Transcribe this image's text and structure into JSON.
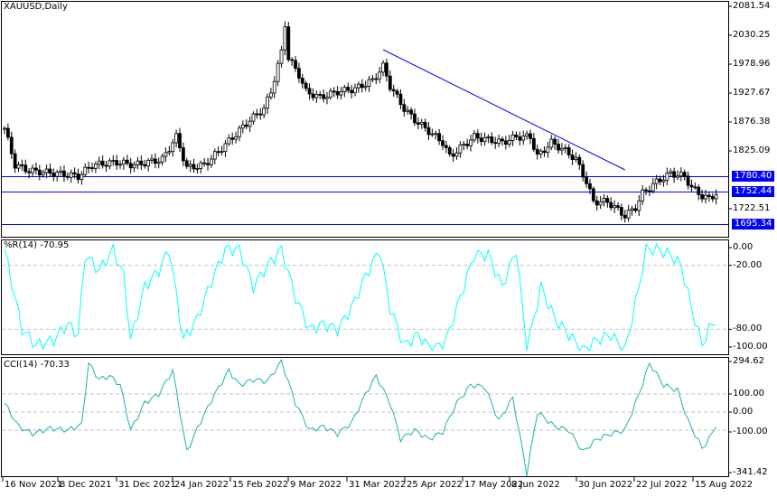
{
  "main_title": "XAUUSD,Daily",
  "price_axis": [
    "2081.54",
    "2030.25",
    "1978.96",
    "1927.67",
    "1876.38",
    "1825.09",
    "1722.51"
  ],
  "levels": [
    {
      "label": "1780.40",
      "value": 1780.4
    },
    {
      "label": "1752.44",
      "value": 1752.44
    },
    {
      "label": "1695.34",
      "value": 1695.34
    }
  ],
  "line_color": "#0000ff",
  "wpr": {
    "title": "%R(14) -70.95",
    "axis": [
      "0.00",
      "-20.00",
      "-80.00",
      "-100.00"
    ],
    "color": "#00ffff"
  },
  "cci": {
    "title": "CCI(14) -70.33",
    "axis": [
      "294.62",
      "100.00",
      "0.00",
      "-100.00",
      "-341.42"
    ],
    "color": "#20b2aa"
  },
  "dates": [
    "16 Nov 2021",
    "8 Dec 2021",
    "31 Dec 2021",
    "24 Jan 2022",
    "15 Feb 2022",
    "9 Mar 2022",
    "31 Mar 2022",
    "25 Apr 2022",
    "17 May 2022",
    "8 Jun 2022",
    "30 Jun 2022",
    "22 Jul 2022",
    "15 Aug 2022"
  ],
  "chart_data": {
    "type": "candlestick",
    "symbol": "XAUUSD",
    "timeframe": "Daily",
    "ylim": [
      1672,
      2089
    ],
    "close_keypoints": [
      [
        0,
        1865
      ],
      [
        3,
        1800
      ],
      [
        7,
        1790
      ],
      [
        15,
        1785
      ],
      [
        21,
        1780
      ],
      [
        25,
        1800
      ],
      [
        32,
        1805
      ],
      [
        37,
        1800
      ],
      [
        45,
        1810
      ],
      [
        49,
        1850
      ],
      [
        52,
        1795
      ],
      [
        57,
        1800
      ],
      [
        62,
        1830
      ],
      [
        66,
        1855
      ],
      [
        70,
        1880
      ],
      [
        74,
        1900
      ],
      [
        76,
        1930
      ],
      [
        79,
        2000
      ],
      [
        80,
        2050
      ],
      [
        81,
        1990
      ],
      [
        84,
        1960
      ],
      [
        86,
        1930
      ],
      [
        90,
        1920
      ],
      [
        95,
        1930
      ],
      [
        100,
        1935
      ],
      [
        105,
        1950
      ],
      [
        108,
        1975
      ],
      [
        110,
        1940
      ],
      [
        114,
        1900
      ],
      [
        117,
        1880
      ],
      [
        121,
        1860
      ],
      [
        125,
        1840
      ],
      [
        127,
        1815
      ],
      [
        130,
        1830
      ],
      [
        134,
        1850
      ],
      [
        138,
        1845
      ],
      [
        142,
        1840
      ],
      [
        146,
        1850
      ],
      [
        150,
        1850
      ],
      [
        152,
        1815
      ],
      [
        156,
        1840
      ],
      [
        160,
        1825
      ],
      [
        163,
        1810
      ],
      [
        166,
        1770
      ],
      [
        168,
        1735
      ],
      [
        172,
        1735
      ],
      [
        175,
        1720
      ],
      [
        177,
        1710
      ],
      [
        180,
        1725
      ],
      [
        182,
        1750
      ],
      [
        186,
        1770
      ],
      [
        190,
        1785
      ],
      [
        194,
        1780
      ],
      [
        196,
        1760
      ],
      [
        199,
        1745
      ],
      [
        201,
        1740
      ],
      [
        203,
        1750
      ]
    ],
    "trendline": [
      [
        108,
        2004.6
      ],
      [
        177,
        1791.4
      ]
    ],
    "wpr_keypoints": [
      [
        0,
        -5
      ],
      [
        5,
        -80
      ],
      [
        9,
        -95
      ],
      [
        14,
        -90
      ],
      [
        18,
        -75
      ],
      [
        21,
        -85
      ],
      [
        23,
        -10
      ],
      [
        27,
        -25
      ],
      [
        31,
        -5
      ],
      [
        34,
        -30
      ],
      [
        36,
        -90
      ],
      [
        40,
        -40
      ],
      [
        44,
        -25
      ],
      [
        47,
        -5
      ],
      [
        51,
        -90
      ],
      [
        55,
        -70
      ],
      [
        59,
        -35
      ],
      [
        63,
        -5
      ],
      [
        67,
        -5
      ],
      [
        71,
        -40
      ],
      [
        75,
        -20
      ],
      [
        79,
        -5
      ],
      [
        83,
        -50
      ],
      [
        87,
        -80
      ],
      [
        91,
        -75
      ],
      [
        95,
        -80
      ],
      [
        99,
        -60
      ],
      [
        103,
        -30
      ],
      [
        107,
        -5
      ],
      [
        110,
        -60
      ],
      [
        114,
        -95
      ],
      [
        118,
        -85
      ],
      [
        122,
        -100
      ],
      [
        126,
        -90
      ],
      [
        130,
        -50
      ],
      [
        134,
        -10
      ],
      [
        138,
        -10
      ],
      [
        142,
        -40
      ],
      [
        146,
        -5
      ],
      [
        149,
        -100
      ],
      [
        153,
        -40
      ],
      [
        157,
        -70
      ],
      [
        161,
        -85
      ],
      [
        165,
        -100
      ],
      [
        169,
        -90
      ],
      [
        173,
        -85
      ],
      [
        177,
        -100
      ],
      [
        181,
        -40
      ],
      [
        183,
        -5
      ],
      [
        186,
        -5
      ],
      [
        190,
        -10
      ],
      [
        193,
        -20
      ],
      [
        196,
        -60
      ],
      [
        199,
        -95
      ],
      [
        201,
        -80
      ],
      [
        203,
        -71
      ]
    ],
    "cci_keypoints": [
      [
        0,
        50
      ],
      [
        4,
        -80
      ],
      [
        8,
        -120
      ],
      [
        13,
        -90
      ],
      [
        18,
        -100
      ],
      [
        22,
        -70
      ],
      [
        24,
        270
      ],
      [
        27,
        180
      ],
      [
        30,
        200
      ],
      [
        33,
        150
      ],
      [
        36,
        -100
      ],
      [
        40,
        50
      ],
      [
        44,
        100
      ],
      [
        48,
        230
      ],
      [
        52,
        -220
      ],
      [
        56,
        -50
      ],
      [
        60,
        100
      ],
      [
        64,
        230
      ],
      [
        67,
        150
      ],
      [
        71,
        180
      ],
      [
        75,
        170
      ],
      [
        79,
        280
      ],
      [
        83,
        50
      ],
      [
        87,
        -100
      ],
      [
        91,
        -80
      ],
      [
        95,
        -120
      ],
      [
        99,
        -60
      ],
      [
        103,
        100
      ],
      [
        106,
        200
      ],
      [
        110,
        50
      ],
      [
        113,
        -150
      ],
      [
        117,
        -100
      ],
      [
        121,
        -150
      ],
      [
        125,
        -110
      ],
      [
        129,
        50
      ],
      [
        133,
        150
      ],
      [
        137,
        140
      ],
      [
        141,
        -50
      ],
      [
        145,
        80
      ],
      [
        149,
        -340
      ],
      [
        152,
        0
      ],
      [
        157,
        -80
      ],
      [
        161,
        -100
      ],
      [
        165,
        -220
      ],
      [
        169,
        -150
      ],
      [
        173,
        -120
      ],
      [
        177,
        -100
      ],
      [
        181,
        100
      ],
      [
        184,
        270
      ],
      [
        188,
        150
      ],
      [
        192,
        120
      ],
      [
        195,
        -50
      ],
      [
        199,
        -200
      ],
      [
        201,
        -150
      ],
      [
        203,
        -70
      ]
    ]
  }
}
